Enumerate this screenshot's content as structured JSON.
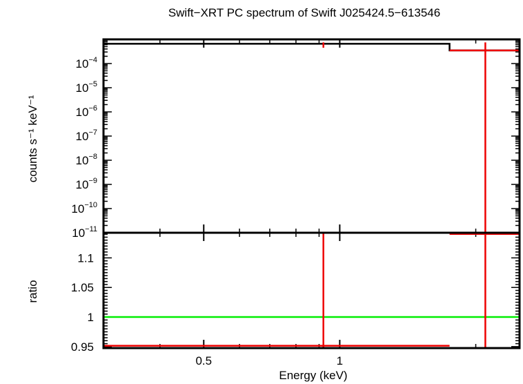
{
  "chart_data": [
    {
      "panel": "top",
      "type": "line",
      "title": "Swift−XRT PC spectrum of Swift J025424.5−613546",
      "ylabel": "counts s⁻¹ keV⁻¹",
      "yscale": "log",
      "xscale": "log",
      "xlim": [
        0.3,
        2.5
      ],
      "ylim": [
        1e-11,
        0.001
      ],
      "ytick_values": [
        1e-11,
        1e-10,
        1e-09,
        1e-08,
        1e-07,
        1e-06,
        1e-05,
        0.0001
      ],
      "ytick_labels": [
        {
          "base": "10",
          "exp": "−11"
        },
        {
          "base": "10",
          "exp": "−10"
        },
        {
          "base": "10",
          "exp": "−9"
        },
        {
          "base": "10",
          "exp": "−8"
        },
        {
          "base": "10",
          "exp": "−7"
        },
        {
          "base": "10",
          "exp": "−6"
        },
        {
          "base": "10",
          "exp": "−5"
        },
        {
          "base": "10",
          "exp": "−4"
        }
      ],
      "model_steps": [
        {
          "x0": 0.3,
          "x1": 1.75,
          "y": 0.00066
        },
        {
          "x1": 2.5,
          "y": 0.00035
        }
      ],
      "data_points": [
        {
          "x": 0.92,
          "y": 0.00066,
          "ylo": 0.00045,
          "yhi": 0.00075
        },
        {
          "x": 2.1,
          "xlo": 1.75,
          "xhi": 2.5,
          "y": 0.00035,
          "ylo": 1e-11,
          "yhi": 0.00075
        }
      ]
    },
    {
      "panel": "bottom",
      "type": "line",
      "xlabel": "Energy (keV)",
      "ylabel": "ratio",
      "xscale": "log",
      "xlim": [
        0.3,
        2.5
      ],
      "ylim": [
        0.9475,
        1.1425
      ],
      "ytick_values": [
        0.95,
        1,
        1.05,
        1.1
      ],
      "ytick_labels": [
        "0.95",
        "1",
        "1.05",
        "1.1"
      ],
      "xtick_values": [
        0.5,
        1
      ],
      "xtick_labels": [
        "0.5",
        "1"
      ],
      "reference_line": {
        "y": 1,
        "color": "#00ee00"
      },
      "data_points": [
        {
          "x": 0.92,
          "xlo": 0.3,
          "xhi": 1.75,
          "y": 0.9515,
          "ylo": 0.9475,
          "yhi": 1.1425
        },
        {
          "x": 2.1,
          "xlo": 1.75,
          "xhi": 2.5,
          "y": 1.1405,
          "ylo": 0.9475,
          "yhi": 1.1425
        }
      ]
    }
  ],
  "colors": {
    "data": "#ee0000",
    "model": "#000000",
    "reference": "#00ee00",
    "axes": "#000000"
  }
}
